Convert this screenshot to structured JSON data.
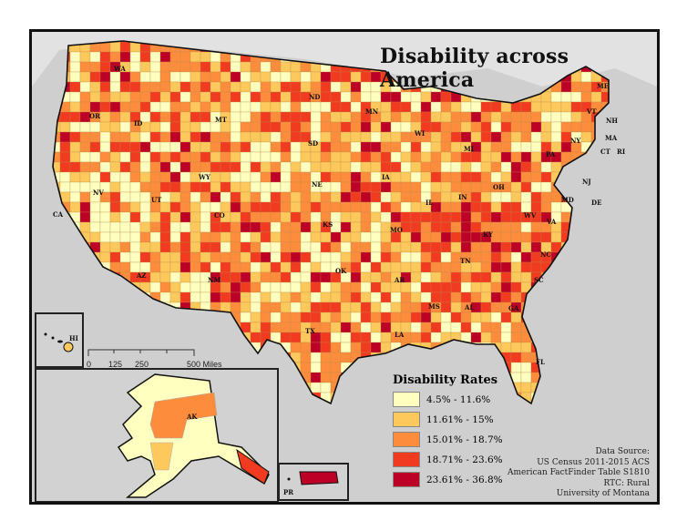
{
  "title": "Disability across America",
  "legend": {
    "title": "Disability Rates",
    "items": [
      {
        "label": "4.5% - 11.6%",
        "color": "#ffffbf"
      },
      {
        "label": "11.61% - 15%",
        "color": "#fec95c"
      },
      {
        "label": "15.01% - 18.7%",
        "color": "#fd8d3c"
      },
      {
        "label": "18.71% - 23.6%",
        "color": "#f03b20"
      },
      {
        "label": "23.61% - 36.8%",
        "color": "#bd0026"
      }
    ]
  },
  "source": {
    "lines": [
      "Data Source:",
      "US Census 2011-2015 ACS",
      "American FactFinder Table S1810",
      "RTC: Rural",
      "University of  Montana"
    ]
  },
  "scale_bar": {
    "labels": [
      "0",
      "125",
      "250",
      "500 Miles"
    ]
  },
  "states": [
    "WA",
    "OR",
    "ID",
    "MT",
    "WY",
    "CA",
    "NV",
    "UT",
    "CO",
    "AZ",
    "NM",
    "ND",
    "SD",
    "NE",
    "KS",
    "OK",
    "TX",
    "MN",
    "IA",
    "MO",
    "AR",
    "LA",
    "WI",
    "IL",
    "MI",
    "IN",
    "OH",
    "KY",
    "TN",
    "MS",
    "AL",
    "GA",
    "FL",
    "SC",
    "NC",
    "VA",
    "WV",
    "PA",
    "NY",
    "VT",
    "NH",
    "ME",
    "MA",
    "CT",
    "RI",
    "NJ",
    "DE",
    "MD"
  ],
  "insets": {
    "alaska": "AK",
    "hawaii": "HI",
    "puerto_rico": "PR"
  }
}
